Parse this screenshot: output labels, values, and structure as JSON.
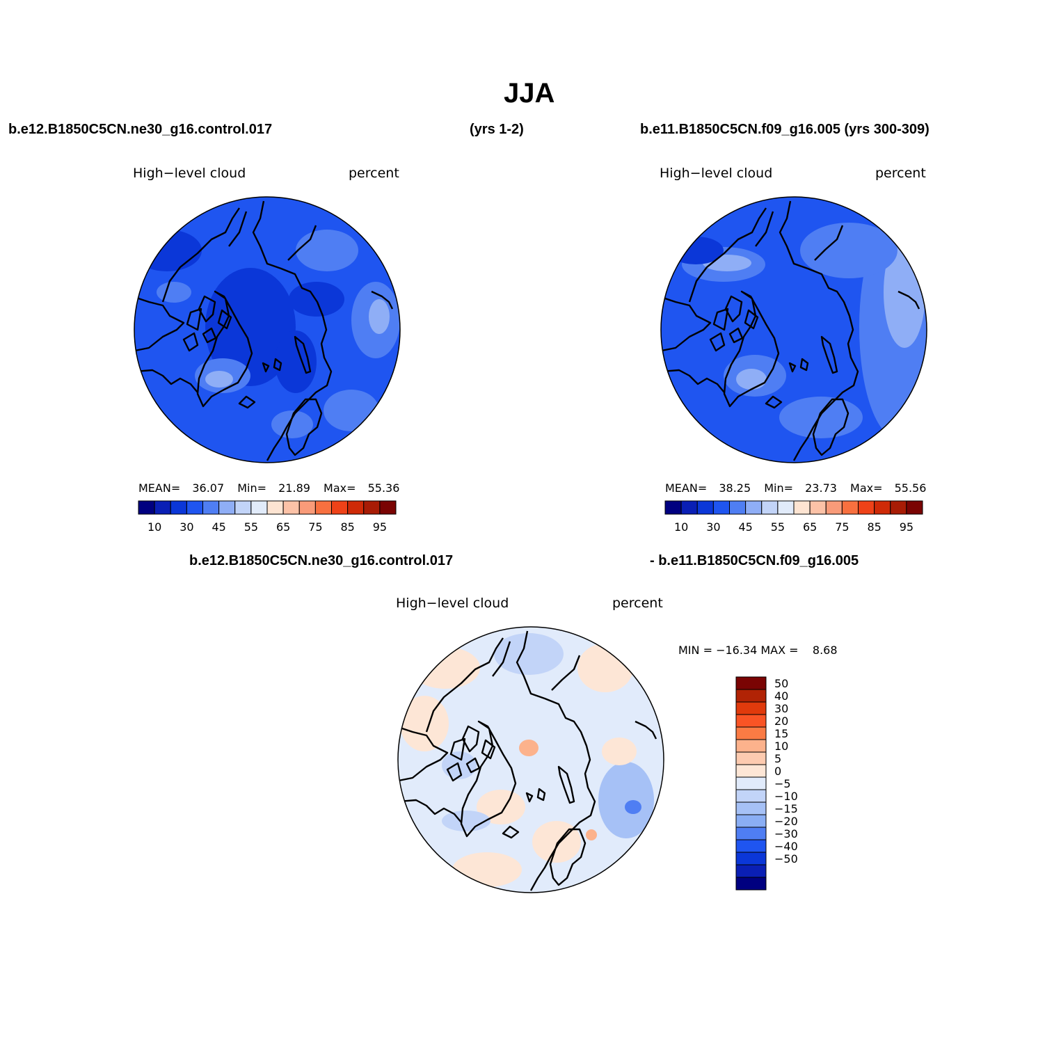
{
  "title": "JJA",
  "panel_left": {
    "case_name": "b.e12.B1850C5CN.ne30_g16.control.017",
    "years": "(yrs 1-2)",
    "variable": "High−level cloud",
    "units": "percent",
    "stats": {
      "mean_label": "MEAN=",
      "mean": "36.07",
      "min_label": "Min=",
      "min": "21.89",
      "max_label": "Max=",
      "max": "55.36"
    }
  },
  "panel_right": {
    "case_name": "b.e11.B1850C5CN.f09_g16.005 (yrs 300-309)",
    "variable": "High−level cloud",
    "units": "percent",
    "stats": {
      "mean_label": "MEAN=",
      "mean": "38.25",
      "min_label": "Min=",
      "min": "23.73",
      "max_label": "Max=",
      "max": "55.56"
    }
  },
  "panel_diff": {
    "case_a": "b.e12.B1850C5CN.ne30_g16.control.017",
    "case_b": "- b.e11.B1850C5CN.f09_g16.005",
    "variable": "High−level cloud",
    "units": "percent",
    "minmax": "MIN = −16.34 MAX =    8.68"
  },
  "abs_colorbar": {
    "colors": [
      "#000080",
      "#0a1fb5",
      "#0b37d8",
      "#1f55f0",
      "#4f7ef3",
      "#8faef6",
      "#c2d4f8",
      "#e1ebfa",
      "#fde4d2",
      "#fcc2a7",
      "#f99b79",
      "#f8703f",
      "#ef4218",
      "#cf2a07",
      "#a81c05",
      "#7a0403"
    ],
    "tick_labels": [
      "10",
      "30",
      "45",
      "55",
      "65",
      "75",
      "85",
      "95"
    ]
  },
  "diff_colorbar": {
    "colors": [
      "#7a0403",
      "#b12305",
      "#e03a0c",
      "#f95425",
      "#fb7b44",
      "#fcb28c",
      "#fdcbb0",
      "#fde6d6",
      "#e1ebfb",
      "#c2d4f8",
      "#a6c1f6",
      "#8aaef4",
      "#4f7ef3",
      "#1f55f0",
      "#0b37d8",
      "#0a1fb5",
      "#000080"
    ],
    "tick_labels": [
      "50",
      "40",
      "30",
      "20",
      "15",
      "10",
      "5",
      "0",
      "−5",
      "−10",
      "−15",
      "−20",
      "−30",
      "−40",
      "−50"
    ]
  },
  "map_colors": {
    "left_base": "#1f55f0",
    "right_base": "#1f55f0",
    "diff_base": "#e1ebfb"
  }
}
